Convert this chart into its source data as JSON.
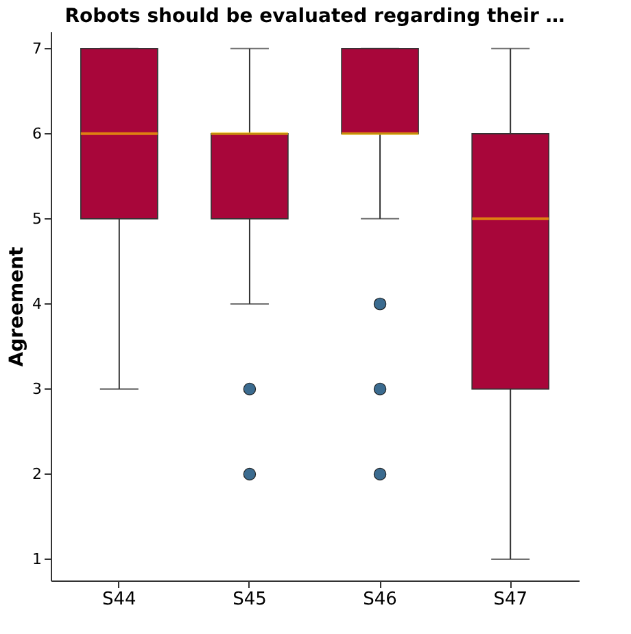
{
  "chart_data": {
    "type": "box",
    "title": "Robots should be evaluated regarding their …",
    "ylabel": "Agreement",
    "categories": [
      "S44",
      "S45",
      "S46",
      "S47"
    ],
    "boxes": [
      {
        "low": 3,
        "q1": 5,
        "median": 6,
        "q3": 7,
        "high": 7
      },
      {
        "low": 4,
        "q1": 5,
        "median": 6,
        "q3": 6,
        "high": 7,
        "outliers": [
          3,
          2
        ]
      },
      {
        "low": 5,
        "q1": 6,
        "median": 6,
        "q3": 7,
        "high": 7,
        "outliers": [
          4,
          3,
          2
        ]
      },
      {
        "low": 1,
        "q1": 3,
        "median": 5,
        "q3": 6,
        "high": 7
      }
    ],
    "color": "#a8063a",
    "ylim": [
      0.75,
      7.2
    ],
    "yticks": [
      1,
      2,
      3,
      4,
      5,
      6,
      7
    ],
    "grid": false
  }
}
